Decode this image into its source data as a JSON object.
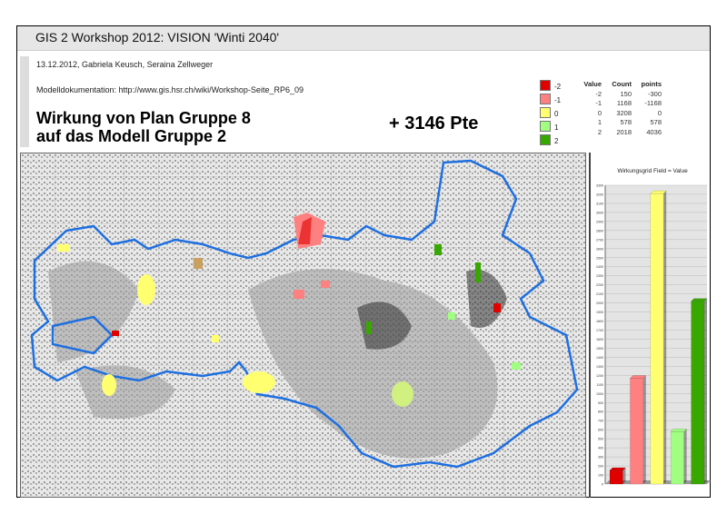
{
  "header": {
    "title": "GIS 2 Workshop 2012: VISION 'Winti 2040'",
    "authors": "13.12.2012, Gabriela Keusch, Seraina Zellweger",
    "doc": "Modelldokumentation: http://www.gis.hsr.ch/wiki/Workshop-Seite_RP6_09",
    "heading_line1": "Wirkung von Plan Gruppe 8",
    "heading_line2": "auf das Modell Gruppe 2",
    "total_points": "+ 3146 Pte"
  },
  "legend": [
    {
      "label": "-2",
      "color": "#e00000"
    },
    {
      "label": "-1",
      "color": "#ff8080"
    },
    {
      "label": "0",
      "color": "#ffff70"
    },
    {
      "label": "1",
      "color": "#a0ff80"
    },
    {
      "label": "2",
      "color": "#38a800"
    }
  ],
  "table": {
    "headers": [
      "Value",
      "Count",
      "points"
    ],
    "rows": [
      [
        "-2",
        "150",
        "-300"
      ],
      [
        "-1",
        "1168",
        "-1168"
      ],
      [
        "0",
        "3208",
        "0"
      ],
      [
        "1",
        "578",
        "578"
      ],
      [
        "2",
        "2018",
        "4036"
      ]
    ]
  },
  "map": {
    "boundary_color": "#1e6fe0"
  },
  "chart_data": {
    "type": "bar",
    "title": "Wirkungsgrid Field = Value",
    "categories": [
      "-2",
      "-1",
      "0",
      "1",
      "2"
    ],
    "values": [
      150,
      1168,
      3208,
      578,
      2018
    ],
    "colors": [
      "#e00000",
      "#ff8080",
      "#ffff70",
      "#a0ff80",
      "#38a800"
    ],
    "ylim": [
      0,
      3300
    ],
    "ytick_step": 100,
    "grid": true
  }
}
